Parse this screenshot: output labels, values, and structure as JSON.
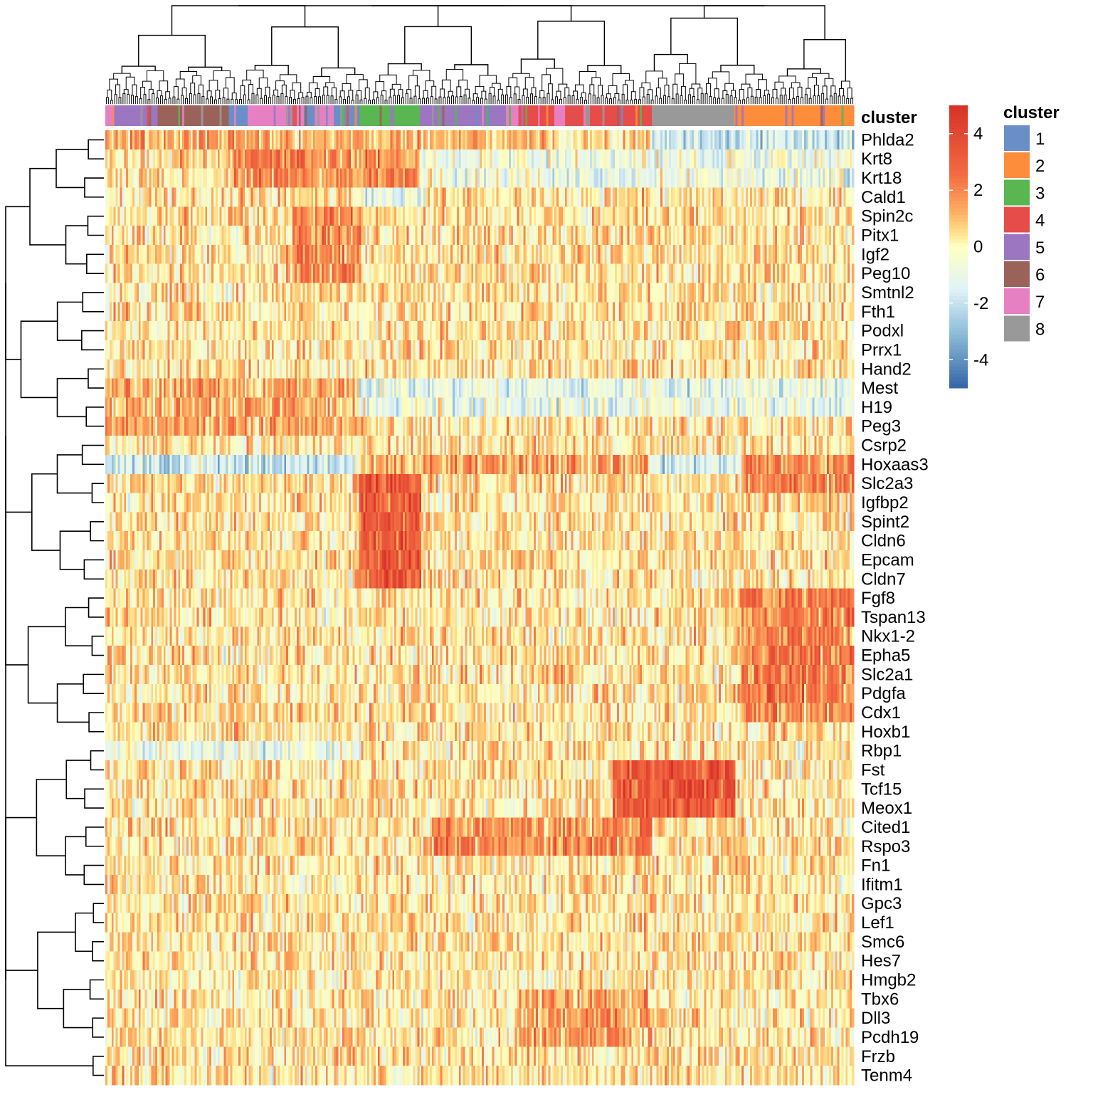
{
  "chart_data": {
    "type": "heatmap",
    "title": "",
    "rows": [
      "Phlda2",
      "Krt8",
      "Krt18",
      "Cald1",
      "Spin2c",
      "Pitx1",
      "Igf2",
      "Peg10",
      "Smtnl2",
      "Fth1",
      "Podxl",
      "Prrx1",
      "Hand2",
      "Mest",
      "H19",
      "Peg3",
      "Csrp2",
      "Hoxaas3",
      "Slc2a3",
      "Igfbp2",
      "Spint2",
      "Cldn6",
      "Epcam",
      "Cldn7",
      "Fgf8",
      "Tspan13",
      "Nkx1-2",
      "Epha5",
      "Slc2a1",
      "Pdgfa",
      "Cdx1",
      "Hoxb1",
      "Rbp1",
      "Fst",
      "Tcf15",
      "Meox1",
      "Cited1",
      "Rspo3",
      "Fn1",
      "Ifitm1",
      "Gpc3",
      "Lef1",
      "Smc6",
      "Hes7",
      "Hmgb2",
      "Tbx6",
      "Dll3",
      "Pcdh19",
      "Frzb",
      "Tenm4"
    ],
    "n_columns": 360,
    "column_annotation": {
      "name": "cluster",
      "colors": {
        "1": "#6a8fc8",
        "2": "#fd8c3b",
        "3": "#5ab650",
        "4": "#e64c4a",
        "5": "#9d76c2",
        "6": "#9b625a",
        "7": "#e680c2",
        "8": "#999999"
      },
      "segments": [
        {
          "cluster": "7",
          "start": 0.0,
          "end": 0.012
        },
        {
          "cluster": "5",
          "start": 0.012,
          "end": 0.07
        },
        {
          "cluster": "6",
          "start": 0.07,
          "end": 0.165
        },
        {
          "cluster": "1",
          "start": 0.165,
          "end": 0.19
        },
        {
          "cluster": "7",
          "start": 0.19,
          "end": 0.265
        },
        {
          "cluster": "1",
          "start": 0.265,
          "end": 0.28
        },
        {
          "cluster": "7",
          "start": 0.28,
          "end": 0.305
        },
        {
          "cluster": "1",
          "start": 0.305,
          "end": 0.34
        },
        {
          "cluster": "3",
          "start": 0.34,
          "end": 0.42
        },
        {
          "cluster": "5",
          "start": 0.42,
          "end": 0.535
        },
        {
          "cluster": "7",
          "start": 0.535,
          "end": 0.552
        },
        {
          "cluster": "4",
          "start": 0.552,
          "end": 0.6
        },
        {
          "cluster": "7",
          "start": 0.6,
          "end": 0.615
        },
        {
          "cluster": "4",
          "start": 0.615,
          "end": 0.73
        },
        {
          "cluster": "8",
          "start": 0.73,
          "end": 0.84
        },
        {
          "cluster": "2",
          "start": 0.84,
          "end": 1.0
        }
      ]
    },
    "legends": [
      {
        "title": "",
        "type": "continuous",
        "ticks": [
          4,
          2,
          0,
          -2,
          -4
        ],
        "range": [
          -5,
          5
        ],
        "stops": [
          {
            "value": 5,
            "color": "#d73027"
          },
          {
            "value": 2.5,
            "color": "#f46d43"
          },
          {
            "value": 1.25,
            "color": "#fdae61"
          },
          {
            "value": 0.5,
            "color": "#fee08b"
          },
          {
            "value": 0,
            "color": "#ffffbf"
          },
          {
            "value": -1.5,
            "color": "#e0f3f8"
          },
          {
            "value": -3,
            "color": "#91bfdb"
          },
          {
            "value": -5,
            "color": "#3465a6"
          }
        ]
      },
      {
        "title": "cluster",
        "type": "discrete",
        "entries": [
          "1",
          "2",
          "3",
          "4",
          "5",
          "6",
          "7",
          "8"
        ]
      }
    ],
    "patterns": [
      {
        "rows": [
          "Phlda2"
        ],
        "from": 0.0,
        "to": 0.34,
        "mean": 1.3
      },
      {
        "rows": [
          "Phlda2"
        ],
        "from": 0.34,
        "to": 0.6,
        "mean": 1.1
      },
      {
        "rows": [
          "Phlda2"
        ],
        "from": 0.73,
        "to": 1.0,
        "mean": -1.8
      },
      {
        "rows": [
          "Krt8",
          "Krt18"
        ],
        "from": 0.17,
        "to": 0.42,
        "mean": 2.0
      },
      {
        "rows": [
          "Krt8",
          "Krt18"
        ],
        "from": 0.42,
        "to": 1.0,
        "mean": -0.8
      },
      {
        "rows": [
          "Cald1"
        ],
        "from": 0.34,
        "to": 0.42,
        "mean": -1.2
      },
      {
        "rows": [
          "Spin2c",
          "Pitx1",
          "Igf2",
          "Peg10"
        ],
        "from": 0.25,
        "to": 0.34,
        "mean": 2.0
      },
      {
        "rows": [
          "Mest",
          "H19",
          "Peg3"
        ],
        "from": 0.0,
        "to": 0.34,
        "mean": 1.4
      },
      {
        "rows": [
          "Mest",
          "H19"
        ],
        "from": 0.34,
        "to": 1.0,
        "mean": -1.0
      },
      {
        "rows": [
          "Hoxaas3"
        ],
        "from": 0.0,
        "to": 0.34,
        "mean": -1.8
      },
      {
        "rows": [
          "Hoxaas3"
        ],
        "from": 0.34,
        "to": 0.73,
        "mean": 1.5
      },
      {
        "rows": [
          "Hoxaas3"
        ],
        "from": 0.73,
        "to": 0.85,
        "mean": -1.6
      },
      {
        "rows": [
          "Hoxaas3"
        ],
        "from": 0.85,
        "to": 1.0,
        "mean": 2.0
      },
      {
        "rows": [
          "Slc2a3",
          "Igfbp2",
          "Spint2",
          "Cldn6",
          "Epcam",
          "Cldn7"
        ],
        "from": 0.34,
        "to": 0.42,
        "mean": 3.2
      },
      {
        "rows": [
          "Slc2a3",
          "Fgf8",
          "Tspan13",
          "Nkx1-2",
          "Epha5",
          "Slc2a1",
          "Pdgfa",
          "Cdx1"
        ],
        "from": 0.85,
        "to": 1.0,
        "mean": 2.2
      },
      {
        "rows": [
          "Fst",
          "Tcf15",
          "Meox1"
        ],
        "from": 0.68,
        "to": 0.84,
        "mean": 3.2
      },
      {
        "rows": [
          "Cited1",
          "Rspo3"
        ],
        "from": 0.44,
        "to": 0.73,
        "mean": 2.0
      },
      {
        "rows": [
          "Rbp1"
        ],
        "from": 0.0,
        "to": 0.34,
        "mean": -1.0
      },
      {
        "rows": [
          "Tbx6",
          "Dll3",
          "Pcdh19"
        ],
        "from": 0.55,
        "to": 0.73,
        "mean": 1.4
      }
    ]
  }
}
